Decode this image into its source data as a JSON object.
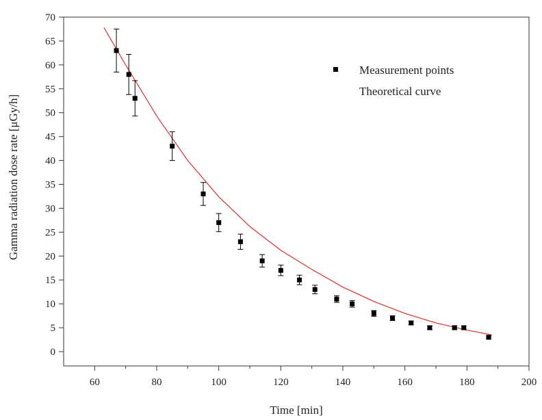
{
  "chart_data": {
    "type": "scatter",
    "title": "",
    "xlabel": "Time [min]",
    "ylabel": "Gamma radiation dose rate [μGy/h]",
    "xlim": [
      50,
      200
    ],
    "ylim": [
      -3,
      70
    ],
    "x_ticks": [
      60,
      80,
      100,
      120,
      140,
      160,
      180,
      200
    ],
    "y_ticks": [
      0,
      5,
      10,
      15,
      20,
      25,
      30,
      35,
      40,
      45,
      50,
      55,
      60,
      65,
      70
    ],
    "grid": false,
    "legend_position": "top-right",
    "series": [
      {
        "name": "Measurement points",
        "type": "scatter",
        "marker": "square",
        "color": "#000000",
        "points": [
          {
            "x": 67,
            "y": 63,
            "err": 4.5
          },
          {
            "x": 71,
            "y": 58,
            "err": 4.2
          },
          {
            "x": 73,
            "y": 53,
            "err": 3.7
          },
          {
            "x": 85,
            "y": 43,
            "err": 3.0
          },
          {
            "x": 95,
            "y": 33,
            "err": 2.4
          },
          {
            "x": 100,
            "y": 27,
            "err": 1.9
          },
          {
            "x": 107,
            "y": 23,
            "err": 1.6
          },
          {
            "x": 114,
            "y": 19,
            "err": 1.3
          },
          {
            "x": 120,
            "y": 17,
            "err": 1.1
          },
          {
            "x": 126,
            "y": 15,
            "err": 1.0
          },
          {
            "x": 131,
            "y": 13,
            "err": 0.9
          },
          {
            "x": 138,
            "y": 11,
            "err": 0.7
          },
          {
            "x": 143,
            "y": 10,
            "err": 0.7
          },
          {
            "x": 150,
            "y": 8,
            "err": 0.6
          },
          {
            "x": 156,
            "y": 7,
            "err": 0.5
          },
          {
            "x": 162,
            "y": 6,
            "err": 0.4
          },
          {
            "x": 168,
            "y": 5,
            "err": 0.4
          },
          {
            "x": 176,
            "y": 5,
            "err": 0.4
          },
          {
            "x": 179,
            "y": 5,
            "err": 0.4
          },
          {
            "x": 187,
            "y": 3,
            "err": 0.3
          }
        ]
      },
      {
        "name": "Theoretical curve",
        "type": "line",
        "color": "#d9302a",
        "x": [
          63,
          70,
          80,
          90,
          100,
          110,
          120,
          130,
          140,
          150,
          160,
          170,
          180,
          188
        ],
        "y": [
          67.8,
          60.0,
          49.3,
          40.0,
          32.4,
          26.2,
          21.2,
          17.2,
          13.5,
          10.5,
          8.0,
          6.0,
          4.5,
          3.5
        ]
      }
    ]
  }
}
